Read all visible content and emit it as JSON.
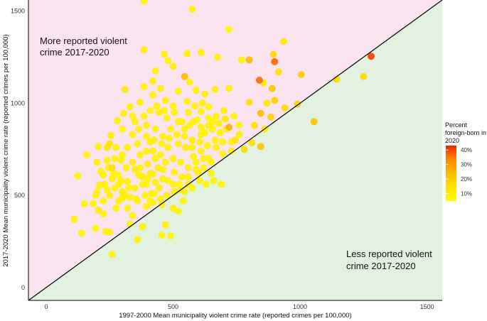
{
  "chart_data": {
    "type": "scatter",
    "title": "",
    "xlabel": "1997-2000 Mean municipality violent crime rate (reported crimes per 100,000)",
    "ylabel": "2017-2020 Mean municipality violent crime rate (reported crimes per 100,000)",
    "xlim": [
      -70,
      1560
    ],
    "ylim": [
      -70,
      1560
    ],
    "xticks": [
      0,
      500,
      1000,
      1500
    ],
    "yticks": [
      0,
      500,
      1000,
      1500
    ],
    "grid": false,
    "reference_line": "y = x",
    "regions": {
      "above": {
        "label": [
          "More reported violent",
          "crime 2017-2020"
        ],
        "color": "#fbe4f0"
      },
      "below": {
        "label": [
          "Less reported violent",
          "crime 2017-2020"
        ],
        "color": "#e3f1e1"
      }
    },
    "legend": {
      "title": [
        "Percent",
        "foreign-born in",
        "2020"
      ],
      "ticks": [
        "40%",
        "30%",
        "20%",
        "10%"
      ],
      "tick_values": [
        40,
        30,
        20,
        10
      ],
      "range": [
        5,
        43
      ],
      "placement": "right"
    },
    "color_scale": [
      "#ffff00",
      "#ffdd00",
      "#ffb000",
      "#ff7a00",
      "#ee2200"
    ],
    "points": [
      [
        385,
        1555,
        8
      ],
      [
        575,
        1510,
        9
      ],
      [
        720,
        1400,
        8
      ],
      [
        935,
        1335,
        12
      ],
      [
        385,
        1290,
        10
      ],
      [
        465,
        1265,
        9
      ],
      [
        555,
        1270,
        9
      ],
      [
        610,
        1275,
        10
      ],
      [
        675,
        1250,
        9
      ],
      [
        770,
        1235,
        9
      ],
      [
        800,
        1235,
        22
      ],
      [
        895,
        1265,
        16
      ],
      [
        900,
        1225,
        36
      ],
      [
        1280,
        1255,
        40
      ],
      [
        1250,
        1145,
        16
      ],
      [
        1145,
        1130,
        14
      ],
      [
        1005,
        1155,
        18
      ],
      [
        915,
        1170,
        14
      ],
      [
        840,
        1125,
        35
      ],
      [
        855,
        1110,
        10
      ],
      [
        545,
        1145,
        22
      ],
      [
        565,
        1115,
        9
      ],
      [
        480,
        1230,
        9
      ],
      [
        500,
        1200,
        10
      ],
      [
        430,
        1175,
        8
      ],
      [
        310,
        1075,
        11
      ],
      [
        385,
        1090,
        9
      ],
      [
        420,
        1120,
        10
      ],
      [
        450,
        1080,
        9
      ],
      [
        520,
        1065,
        8
      ],
      [
        590,
        1070,
        9
      ],
      [
        625,
        1050,
        10
      ],
      [
        665,
        1075,
        10
      ],
      [
        720,
        1080,
        9
      ],
      [
        890,
        1080,
        20
      ],
      [
        800,
        1005,
        15
      ],
      [
        870,
        1000,
        12
      ],
      [
        900,
        1015,
        18
      ],
      [
        990,
        995,
        18
      ],
      [
        1055,
        900,
        20
      ],
      [
        940,
        975,
        16
      ],
      [
        845,
        945,
        22
      ],
      [
        885,
        925,
        17
      ],
      [
        820,
        880,
        14
      ],
      [
        860,
        860,
        12
      ],
      [
        810,
        785,
        14
      ],
      [
        780,
        750,
        15
      ],
      [
        845,
        765,
        20
      ],
      [
        720,
        870,
        24
      ],
      [
        745,
        800,
        12
      ],
      [
        705,
        915,
        12
      ],
      [
        655,
        900,
        9
      ],
      [
        610,
        955,
        9
      ],
      [
        640,
        980,
        8
      ],
      [
        560,
        950,
        9
      ],
      [
        500,
        985,
        9
      ],
      [
        470,
        1015,
        9
      ],
      [
        420,
        1045,
        9
      ],
      [
        370,
        1005,
        10
      ],
      [
        330,
        980,
        9
      ],
      [
        305,
        945,
        10
      ],
      [
        280,
        905,
        9
      ],
      [
        300,
        860,
        8
      ],
      [
        255,
        825,
        10
      ],
      [
        250,
        780,
        13
      ],
      [
        240,
        760,
        12
      ],
      [
        205,
        765,
        9
      ],
      [
        160,
        720,
        8
      ],
      [
        125,
        605,
        8
      ],
      [
        150,
        455,
        9
      ],
      [
        200,
        520,
        8
      ],
      [
        205,
        420,
        10
      ],
      [
        225,
        400,
        9
      ],
      [
        195,
        320,
        8
      ],
      [
        140,
        295,
        8
      ],
      [
        110,
        370,
        8
      ],
      [
        235,
        305,
        9
      ],
      [
        250,
        300,
        9
      ],
      [
        275,
        430,
        9
      ],
      [
        285,
        470,
        9
      ],
      [
        300,
        485,
        8
      ],
      [
        310,
        500,
        10
      ],
      [
        320,
        430,
        8
      ],
      [
        330,
        345,
        8
      ],
      [
        340,
        390,
        9
      ],
      [
        360,
        260,
        9
      ],
      [
        380,
        330,
        9
      ],
      [
        395,
        440,
        8
      ],
      [
        410,
        470,
        8
      ],
      [
        425,
        510,
        9
      ],
      [
        450,
        480,
        9
      ],
      [
        470,
        340,
        9
      ],
      [
        500,
        430,
        9
      ],
      [
        520,
        415,
        9
      ],
      [
        540,
        470,
        8
      ],
      [
        455,
        285,
        8
      ],
      [
        260,
        180,
        9
      ],
      [
        490,
        280,
        8
      ],
      [
        420,
        615,
        9
      ],
      [
        380,
        560,
        9
      ],
      [
        350,
        640,
        10
      ],
      [
        320,
        575,
        9
      ],
      [
        295,
        690,
        9
      ],
      [
        285,
        610,
        8
      ],
      [
        260,
        650,
        14
      ],
      [
        240,
        690,
        9
      ],
      [
        225,
        610,
        9
      ],
      [
        210,
        555,
        9
      ],
      [
        195,
        500,
        9
      ],
      [
        185,
        455,
        8
      ],
      [
        370,
        720,
        9
      ],
      [
        400,
        670,
        10
      ],
      [
        430,
        700,
        9
      ],
      [
        460,
        640,
        9
      ],
      [
        480,
        580,
        8
      ],
      [
        505,
        625,
        9
      ],
      [
        525,
        560,
        8
      ],
      [
        545,
        520,
        9
      ],
      [
        560,
        600,
        8
      ],
      [
        600,
        620,
        9
      ],
      [
        630,
        560,
        8
      ],
      [
        660,
        580,
        9
      ],
      [
        690,
        560,
        8
      ],
      [
        580,
        710,
        9
      ],
      [
        610,
        740,
        9
      ],
      [
        640,
        700,
        8
      ],
      [
        670,
        760,
        9
      ],
      [
        695,
        725,
        8
      ],
      [
        730,
        790,
        9
      ],
      [
        760,
        830,
        10
      ],
      [
        760,
        880,
        9
      ],
      [
        740,
        930,
        9
      ],
      [
        700,
        960,
        10
      ],
      [
        670,
        930,
        9
      ],
      [
        640,
        880,
        9
      ],
      [
        610,
        830,
        9
      ],
      [
        575,
        800,
        10
      ],
      [
        545,
        860,
        9
      ],
      [
        520,
        900,
        9
      ],
      [
        490,
        860,
        9
      ],
      [
        460,
        820,
        10
      ],
      [
        430,
        860,
        9
      ],
      [
        410,
        790,
        9
      ],
      [
        395,
        740,
        9
      ],
      [
        360,
        780,
        9
      ],
      [
        340,
        830,
        10
      ],
      [
        320,
        760,
        9
      ],
      [
        300,
        720,
        9
      ],
      [
        275,
        760,
        9
      ],
      [
        350,
        900,
        9
      ],
      [
        385,
        930,
        9
      ],
      [
        410,
        960,
        8
      ],
      [
        445,
        950,
        9
      ],
      [
        475,
        920,
        9
      ],
      [
        505,
        950,
        9
      ],
      [
        535,
        900,
        9
      ],
      [
        565,
        880,
        9
      ],
      [
        595,
        910,
        8
      ],
      [
        625,
        840,
        9
      ],
      [
        655,
        860,
        9
      ],
      [
        685,
        840,
        9
      ],
      [
        520,
        780,
        9
      ],
      [
        550,
        760,
        10
      ],
      [
        480,
        760,
        9
      ],
      [
        450,
        720,
        9
      ],
      [
        420,
        740,
        9
      ],
      [
        500,
        700,
        9
      ],
      [
        530,
        680,
        9
      ],
      [
        560,
        650,
        9
      ],
      [
        590,
        680,
        9
      ],
      [
        620,
        650,
        9
      ],
      [
        650,
        620,
        8
      ],
      [
        470,
        680,
        9
      ],
      [
        440,
        650,
        9
      ],
      [
        410,
        620,
        9
      ],
      [
        380,
        600,
        10
      ],
      [
        350,
        540,
        9
      ],
      [
        330,
        490,
        9
      ],
      [
        300,
        520,
        10
      ],
      [
        270,
        540,
        9
      ],
      [
        250,
        500,
        9
      ],
      [
        230,
        560,
        8
      ],
      [
        215,
        630,
        9
      ],
      [
        200,
        680,
        9
      ],
      [
        340,
        680,
        10
      ],
      [
        315,
        650,
        9
      ],
      [
        285,
        560,
        9
      ],
      [
        260,
        590,
        9
      ],
      [
        240,
        530,
        9
      ],
      [
        225,
        470,
        9
      ],
      [
        365,
        610,
        9
      ],
      [
        395,
        560,
        8
      ],
      [
        415,
        510,
        9
      ],
      [
        445,
        540,
        9
      ],
      [
        475,
        500,
        9
      ],
      [
        505,
        520,
        10
      ],
      [
        535,
        600,
        9
      ],
      [
        575,
        540,
        9
      ],
      [
        605,
        580,
        8
      ],
      [
        395,
        820,
        9
      ],
      [
        425,
        800,
        10
      ],
      [
        455,
        780,
        9
      ],
      [
        485,
        810,
        9
      ],
      [
        515,
        830,
        9
      ],
      [
        545,
        820,
        9
      ],
      [
        575,
        760,
        9
      ],
      [
        605,
        790,
        9
      ],
      [
        635,
        770,
        8
      ],
      [
        665,
        800,
        9
      ],
      [
        695,
        790,
        9
      ],
      [
        555,
        1010,
        9
      ],
      [
        585,
        985,
        9
      ],
      [
        615,
        1000,
        10
      ],
      [
        435,
        985,
        9
      ],
      [
        465,
        960,
        9
      ],
      [
        395,
        880,
        9
      ],
      [
        365,
        860,
        9
      ],
      [
        340,
        930,
        8
      ],
      [
        580,
        900,
        9
      ],
      [
        610,
        870,
        9
      ],
      [
        640,
        920,
        8
      ],
      [
        680,
        890,
        10
      ],
      [
        710,
        860,
        9
      ],
      [
        730,
        740,
        10
      ],
      [
        650,
        680,
        9
      ],
      [
        620,
        700,
        9
      ],
      [
        590,
        640,
        9
      ],
      [
        560,
        560,
        9
      ],
      [
        530,
        530,
        8
      ],
      [
        500,
        560,
        9
      ],
      [
        460,
        590,
        9
      ],
      [
        430,
        570,
        9
      ],
      [
        400,
        590,
        9
      ],
      [
        370,
        650,
        9
      ],
      [
        355,
        480,
        9
      ],
      [
        325,
        540,
        8
      ],
      [
        295,
        580,
        9
      ],
      [
        265,
        620,
        9
      ],
      [
        245,
        650,
        9
      ],
      [
        270,
        700,
        9
      ],
      [
        360,
        470,
        9
      ],
      [
        390,
        500,
        8
      ],
      [
        420,
        460,
        9
      ],
      [
        455,
        450,
        9
      ]
    ]
  }
}
